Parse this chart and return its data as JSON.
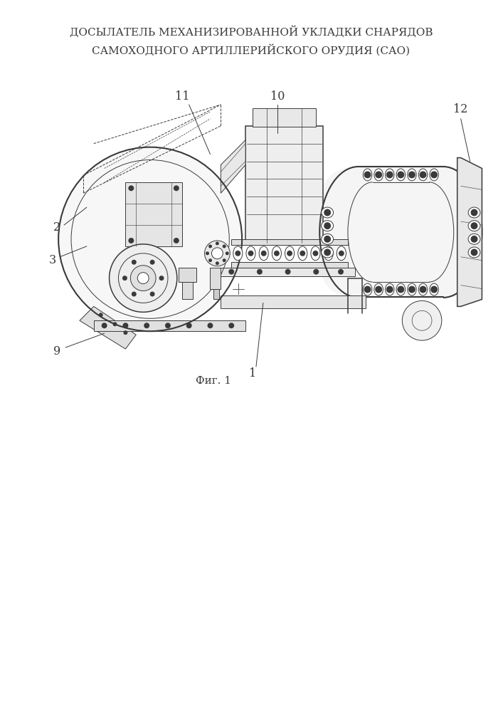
{
  "title_line1": "ДОСЫЛАТЕЛЬ МЕХАНИЗИРОВАННОЙ УКЛАДКИ СНАРЯДОВ",
  "title_line2": "САМОХОДНОГО АРТИЛЛЕРИЙСКОГО ОРУДИЯ (САО)",
  "fig_label": "Фиг. 1",
  "bg_color": "#ffffff",
  "draw_color": "#3a3a3a",
  "title_fontsize": 11.0,
  "fig_label_fontsize": 11
}
